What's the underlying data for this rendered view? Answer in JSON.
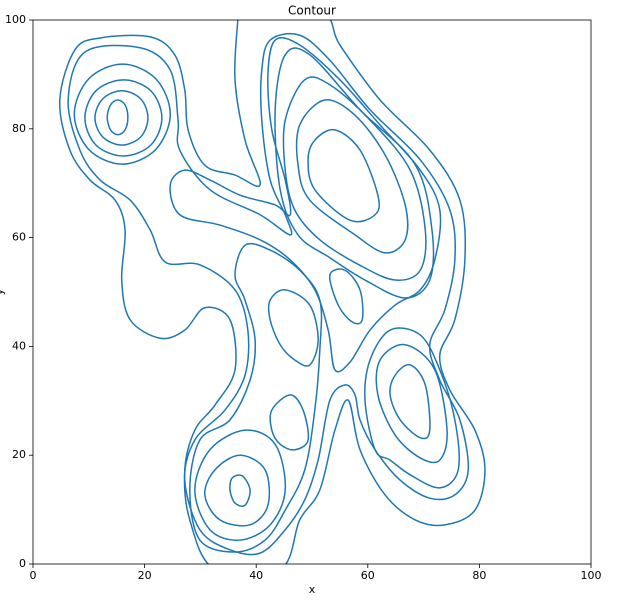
{
  "chart_data": {
    "type": "contour",
    "title": "Contour",
    "xlabel": "x",
    "ylabel": "y",
    "color": "#1f77b4",
    "xlim": [
      0,
      100
    ],
    "ylim": [
      0,
      100
    ],
    "xticks": [
      0,
      20,
      40,
      60,
      80,
      100
    ],
    "yticks": [
      0,
      20,
      40,
      60,
      80,
      100
    ],
    "contours": [
      {
        "x": [
          4.8,
          7.5,
          12,
          21,
          25.4,
          27.2,
          27.8,
          30.8,
          36.2,
          40.7,
          38,
          36.2,
          36.7,
          37,
          51.4,
          55,
          62.2,
          71.1,
          76.5,
          77.4,
          75.6,
          72.9,
          74.7,
          79.2,
          81,
          79.2,
          73.8,
          68.5,
          63.1,
          58.6,
          56.5,
          54.1,
          51.4,
          47.8,
          44.3,
          32.6,
          28.1,
          27.2,
          29,
          32.6,
          36.2,
          35.3,
          30.8,
          27.2,
          22.8,
          17.4,
          15.9,
          16.5,
          14.7,
          10.2,
          6.6
        ],
        "y": [
          85.3,
          94.5,
          96.7,
          96.9,
          93.6,
          87.1,
          79.8,
          73.3,
          71.5,
          69.7,
          77.9,
          89,
          100,
          103,
          101.8,
          95.4,
          85.3,
          76.1,
          66.9,
          55.9,
          44.9,
          38.4,
          32,
          24.6,
          17.3,
          9.9,
          7.2,
          8.1,
          12.7,
          21,
          30.1,
          24.6,
          13.6,
          8.1,
          -1,
          -1,
          8.1,
          17.3,
          24.6,
          29.2,
          35.7,
          44.9,
          47.1,
          43,
          41.5,
          44.9,
          52.2,
          61.4,
          66.9,
          70.6,
          76.1
        ]
      },
      {
        "x": [
          6.3,
          9.3,
          19.2,
          24.6,
          26,
          26.3,
          31.7,
          40.7,
          46.1,
          45.2,
          42.5,
          41,
          41,
          42.5,
          47.8,
          53.2,
          60.4,
          69.4,
          74.7,
          75.6,
          73.8,
          71.1,
          72.9,
          76.5,
          78,
          75.6,
          71.1,
          65.8,
          61.3,
          58.6,
          57.7,
          55.9,
          53.2,
          51.1,
          48.7,
          45.2,
          40.7,
          35.3,
          29.9,
          27.2,
          29,
          34.4,
          38,
          38.5,
          36.2,
          29.9,
          23.7,
          21,
          17.4,
          12,
          8.4
        ],
        "y": [
          85.3,
          94.1,
          94.9,
          90.8,
          81.6,
          76.1,
          68.8,
          64.2,
          60.5,
          64.2,
          70.6,
          81.6,
          90.8,
          96.3,
          97.2,
          92.6,
          83.5,
          74.3,
          65.1,
          55.9,
          46.7,
          40.3,
          33.8,
          26.5,
          17.3,
          12.7,
          12.1,
          15.4,
          21,
          26.5,
          31.1,
          32.9,
          30.1,
          19.1,
          11.8,
          6.3,
          2,
          2.6,
          6.3,
          15.4,
          22.8,
          28.3,
          34.7,
          43,
          50.4,
          55,
          55.5,
          61.4,
          66.9,
          70.6,
          76.1
        ]
      },
      {
        "x": [
          24.6,
          26.3,
          33.5,
          40.7,
          46.1,
          50.5,
          52.9,
          54.1,
          56.8,
          60.4,
          64.9,
          69.4,
          72,
          72.9,
          69.4,
          62.2,
          55,
          47.8,
          43.4,
          42.1,
          42.8,
          45.2,
          46.1,
          43.4,
          37.1,
          31.7,
          27.2
        ],
        "y": [
          69.7,
          64.2,
          62.3,
          59.6,
          55.9,
          50.4,
          43,
          35.7,
          37.1,
          43,
          47.6,
          50.4,
          55.9,
          65.1,
          72.4,
          80.7,
          89,
          95.4,
          96.3,
          89.9,
          79.8,
          70.6,
          64.2,
          66,
          67.8,
          70.6,
          72.4
        ]
      },
      {
        "x": [
          29.9,
          28.1,
          29.9,
          35.3,
          38.9,
          39.8,
          38,
          36.2,
          38,
          42.5,
          47.8,
          51.4,
          51.4,
          50.5,
          48.7,
          45.2,
          41.6,
          36.2
        ],
        "y": [
          4.4,
          13.6,
          22.8,
          26.5,
          33.8,
          41.2,
          48.5,
          53.1,
          58.6,
          57.7,
          54,
          48.5,
          39.3,
          28.3,
          17.3,
          9.9,
          4.4,
          2.2
        ]
      },
      {
        "x": [
          61.3,
          59.5,
          60.4,
          64,
          69.4,
          72.9,
          75.6,
          76.2,
          72.9,
          67.6,
          64
        ],
        "y": [
          21,
          30.1,
          37.5,
          43,
          42.1,
          35.7,
          26.5,
          17.3,
          14,
          16.4,
          19.1
        ]
      },
      {
        "x": [
          7.4,
          10,
          16,
          22,
          24.6,
          22,
          16,
          10
        ],
        "y": [
          82.7,
          89.2,
          91.9,
          89.2,
          82.7,
          76.2,
          73.5,
          76.2
        ]
      },
      {
        "x": [
          9.3,
          11.3,
          16.2,
          21.1,
          23.1,
          21.1,
          16.2,
          11.3
        ],
        "y": [
          82,
          87,
          89,
          87,
          82,
          77,
          75,
          77
        ]
      },
      {
        "x": [
          11.1,
          12.5,
          15.9,
          19.3,
          20.6,
          19.3,
          15.9,
          12.5
        ],
        "y": [
          82,
          85.5,
          87,
          85.5,
          82,
          78.5,
          77,
          78.5
        ]
      },
      {
        "x": [
          13.3,
          13.9,
          15.2,
          16.5,
          17,
          16.5,
          15.2,
          13.9
        ],
        "y": [
          82.1,
          84.4,
          85.3,
          84.4,
          82.1,
          79.8,
          78.9,
          79.8
        ]
      },
      {
        "x": [
          43.4,
          45.2,
          49.6,
          58.6,
          68.5,
          71.5,
          71.1,
          66.7,
          59.5,
          53.2,
          47.5,
          44.3
        ],
        "y": [
          83.5,
          93.6,
          93.6,
          83.5,
          73.4,
          61.4,
          52.2,
          48.9,
          52.2,
          56.3,
          60.5,
          68.8
        ]
      },
      {
        "x": [
          45.2,
          48.7,
          53.2,
          60.4,
          67.6,
          70.3,
          69.4,
          64.9,
          58.6,
          51.4,
          46.9,
          45.2
        ],
        "y": [
          81.6,
          89,
          88.1,
          81.6,
          72.4,
          61.4,
          54,
          52.2,
          54.9,
          59.6,
          65.1,
          72.4
        ]
      },
      {
        "x": [
          47.8,
          52.3,
          57.7,
          63.1,
          66.7,
          66.7,
          63.1,
          57.7,
          49.6,
          47.5
        ],
        "y": [
          80.7,
          85.3,
          82.5,
          75.2,
          66,
          59.6,
          57.2,
          60.5,
          66.9,
          73.3
        ]
      },
      {
        "x": [
          50.5,
          54.1,
          58.6,
          61.8,
          61.3,
          56.8,
          50.5,
          49.3
        ],
        "y": [
          77.9,
          79.8,
          76.1,
          67.8,
          64.2,
          63.2,
          68.8,
          74.3
        ]
      },
      {
        "x": [
          42.5,
          45.2,
          49.6,
          51.1,
          49.6,
          46.9,
          44.3,
          42.5
        ],
        "y": [
          48.5,
          50.4,
          47.6,
          41.2,
          36.6,
          37.5,
          40.3,
          44.9
        ]
      },
      {
        "x": [
          42.8,
          46.1,
          48.4,
          49.3,
          46.9,
          44.3,
          42.8
        ],
        "y": [
          28.3,
          31.1,
          28.3,
          22.8,
          21,
          22,
          24.6
        ]
      },
      {
        "x": [
          53.2,
          55.9,
          58.6,
          59,
          57.2,
          54.7
        ],
        "y": [
          53.1,
          54,
          50.4,
          44.9,
          44.5,
          47.6
        ]
      },
      {
        "x": [
          31.7,
          38,
          43.4,
          45.2,
          42.5,
          37.1,
          31.7,
          29
        ],
        "y": [
          21,
          24.6,
          22,
          13.6,
          7.2,
          4.4,
          6.3,
          13.6
        ]
      },
      {
        "x": [
          32.6,
          37.1,
          41.6,
          42.1,
          38.9,
          33.5,
          30.8
        ],
        "y": [
          17.3,
          20,
          17.3,
          10.8,
          7.2,
          8.1,
          12.7
        ]
      },
      {
        "x": [
          35.7,
          37.5,
          38.9,
          38,
          36.2,
          35.3
        ],
        "y": [
          15.8,
          16.2,
          13.6,
          10.8,
          11.2,
          13.6
        ]
      },
      {
        "x": [
          62.2,
          66.7,
          72,
          74.2,
          72.9,
          69.4,
          64.9,
          61.8
        ],
        "y": [
          37.5,
          40.3,
          35.7,
          24.6,
          19.1,
          19.5,
          23.7,
          31.1
        ]
      },
      {
        "x": [
          64.9,
          67.6,
          70.3,
          71.1,
          69.4,
          65.8,
          64
        ],
        "y": [
          34.7,
          36.6,
          32.9,
          24.6,
          23.2,
          26.5,
          31.1
        ]
      }
    ]
  }
}
